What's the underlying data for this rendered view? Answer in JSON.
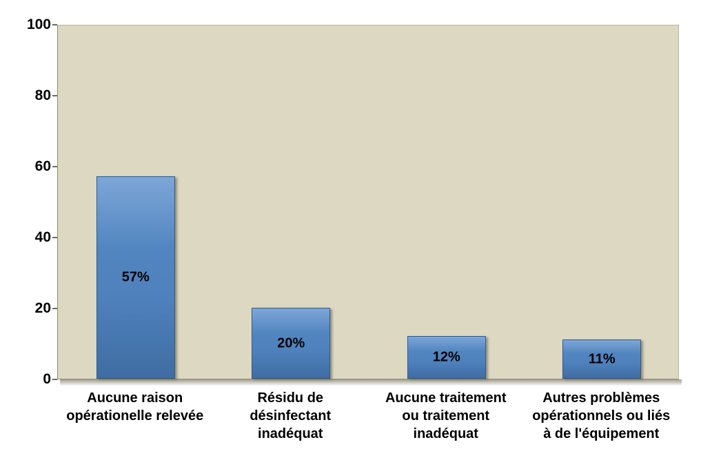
{
  "chart_data": {
    "type": "bar",
    "title": "",
    "xlabel": "",
    "ylabel": "",
    "categories": [
      "Aucune raison\nopérationelle relevée",
      "Résidu de\ndésinfectant\ninadéquat",
      "Aucune traitement\nou traitement\ninadéquat",
      "Autres problèmes\nopérationnels ou liés\nà de l'équipement"
    ],
    "values": [
      57,
      20,
      12,
      11
    ],
    "bar_labels": [
      "57%",
      "20%",
      "12%",
      "11%"
    ],
    "yticks": [
      0,
      20,
      40,
      60,
      80,
      100
    ],
    "ylim": [
      0,
      100
    ],
    "grid": "off",
    "legend": "none",
    "colors": {
      "bar_fill": "#4f81bd",
      "bar_border": "#2d5a8a",
      "plot_background": "#dcd8c2",
      "page_background": "#ffffff",
      "text": "#000000"
    }
  }
}
